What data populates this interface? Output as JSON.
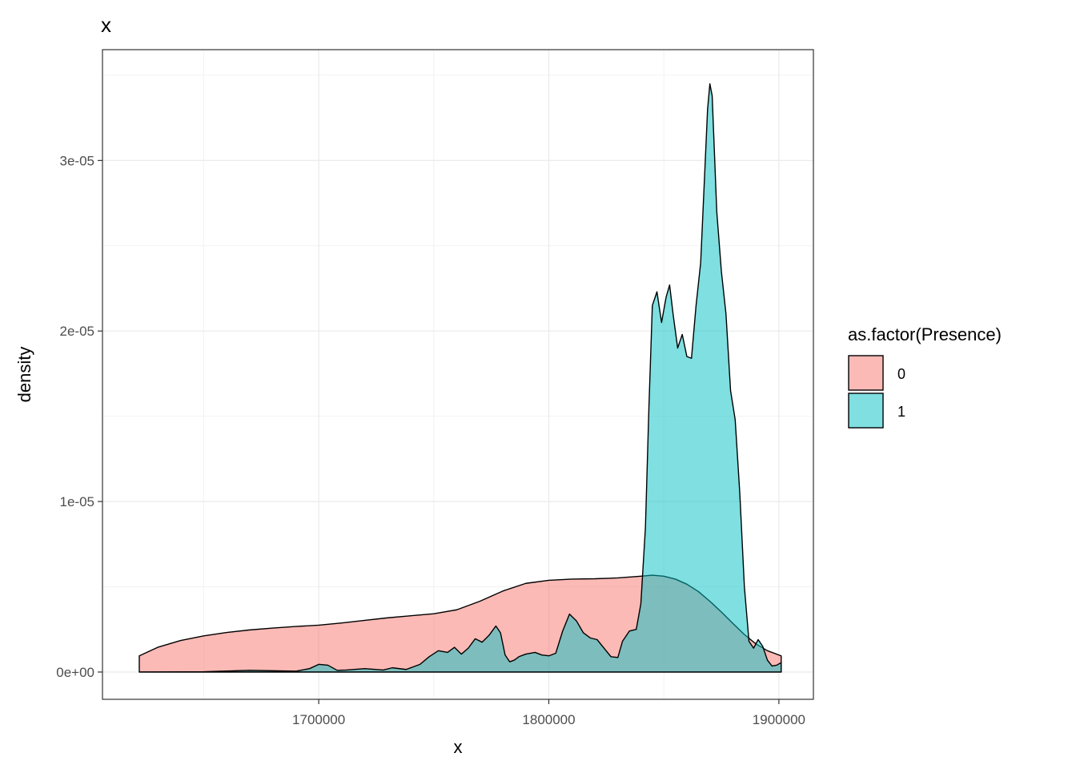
{
  "chart_data": {
    "type": "area",
    "title": "x",
    "xlabel": "x",
    "ylabel": "density",
    "xlim": [
      1606000,
      1915000
    ],
    "ylim": [
      -1.6e-06,
      3.65e-05
    ],
    "x_ticks": [
      1700000,
      1800000,
      1900000
    ],
    "x_tick_labels": [
      "1700000",
      "1800000",
      "1900000"
    ],
    "y_ticks": [
      0,
      1e-05,
      2e-05,
      3e-05
    ],
    "y_tick_labels": [
      "0e+00",
      "1e-05",
      "2e-05",
      "3e-05"
    ],
    "grid": true,
    "legend": {
      "title": "as.factor(Presence)",
      "placement": "right",
      "entries": [
        {
          "label": "0",
          "color": "#F8766D"
        },
        {
          "label": "1",
          "color": "#00BFC4"
        }
      ]
    },
    "fill_alpha": 0.5,
    "series": [
      {
        "name": "0",
        "color": "#F8766D",
        "x": [
          1622000,
          1630000,
          1640000,
          1650000,
          1660000,
          1670000,
          1680000,
          1690000,
          1700000,
          1710000,
          1720000,
          1730000,
          1740000,
          1750000,
          1760000,
          1770000,
          1780000,
          1790000,
          1800000,
          1810000,
          1820000,
          1830000,
          1840000,
          1845000,
          1850000,
          1855000,
          1860000,
          1865000,
          1870000,
          1875000,
          1880000,
          1885000,
          1890000,
          1895000,
          1901000
        ],
        "values": [
          9.5e-07,
          1.45e-06,
          1.85e-06,
          2.12e-06,
          2.32e-06,
          2.47e-06,
          2.58e-06,
          2.67e-06,
          2.75e-06,
          2.88e-06,
          3.03e-06,
          3.18e-06,
          3.3e-06,
          3.42e-06,
          3.65e-06,
          4.15e-06,
          4.75e-06,
          5.2e-06,
          5.38e-06,
          5.45e-06,
          5.47e-06,
          5.52e-06,
          5.62e-06,
          5.68e-06,
          5.62e-06,
          5.45e-06,
          5.15e-06,
          4.72e-06,
          4.15e-06,
          3.52e-06,
          2.85e-06,
          2.2e-06,
          1.65e-06,
          1.25e-06,
          9.5e-07
        ]
      },
      {
        "name": "1",
        "color": "#00BFC4",
        "x": [
          1622000,
          1650000,
          1670000,
          1690000,
          1696000,
          1700000,
          1704000,
          1708000,
          1712000,
          1720000,
          1728000,
          1732000,
          1738000,
          1744000,
          1748000,
          1752000,
          1756000,
          1759000,
          1762000,
          1765000,
          1768000,
          1771000,
          1774000,
          1777000,
          1779000,
          1781000,
          1783000,
          1785000,
          1787000,
          1790000,
          1794000,
          1797000,
          1800000,
          1803000,
          1806000,
          1809000,
          1812000,
          1815000,
          1818000,
          1821000,
          1824000,
          1827000,
          1830000,
          1832000,
          1835000,
          1838000,
          1840000,
          1842000,
          1843500,
          1845000,
          1847000,
          1849000,
          1851000,
          1852500,
          1854000,
          1856000,
          1858000,
          1860000,
          1862000,
          1864000,
          1866000,
          1867500,
          1869000,
          1870000,
          1871000,
          1873000,
          1875000,
          1877000,
          1879000,
          1881000,
          1883000,
          1885000,
          1887000,
          1889000,
          1891000,
          1893000,
          1895000,
          1897000,
          1899000,
          1901000
        ],
        "values": [
          0.0,
          2e-08,
          1e-07,
          5e-08,
          2e-07,
          4.5e-07,
          4e-07,
          1e-07,
          1.2e-07,
          2e-07,
          1.2e-07,
          2.5e-07,
          1.5e-07,
          4.5e-07,
          9e-07,
          1.25e-06,
          1.15e-06,
          1.45e-06,
          1.05e-06,
          1.4e-06,
          1.95e-06,
          1.75e-06,
          2.15e-06,
          2.7e-06,
          2.3e-06,
          1e-06,
          6e-07,
          7e-07,
          9e-07,
          1.05e-06,
          1.15e-06,
          1e-06,
          9.5e-07,
          1.1e-06,
          2.4e-06,
          3.4e-06,
          3e-06,
          2.3e-06,
          2e-06,
          1.9e-06,
          1.4e-06,
          9e-07,
          8.5e-07,
          1.8e-06,
          2.4e-06,
          2.5e-06,
          4e-06,
          8.5e-06,
          1.55e-05,
          2.15e-05,
          2.23e-05,
          2.05e-05,
          2.2e-05,
          2.27e-05,
          2.1e-05,
          1.9e-05,
          1.98e-05,
          1.85e-05,
          1.84e-05,
          2.15e-05,
          2.4e-05,
          2.85e-05,
          3.3e-05,
          3.45e-05,
          3.38e-05,
          2.7e-05,
          2.35e-05,
          2.1e-05,
          1.65e-05,
          1.48e-05,
          1.05e-05,
          5e-06,
          1.8e-06,
          1.4e-06,
          1.9e-06,
          1.5e-06,
          7e-07,
          3.5e-07,
          4e-07,
          5.5e-07
        ]
      }
    ]
  }
}
